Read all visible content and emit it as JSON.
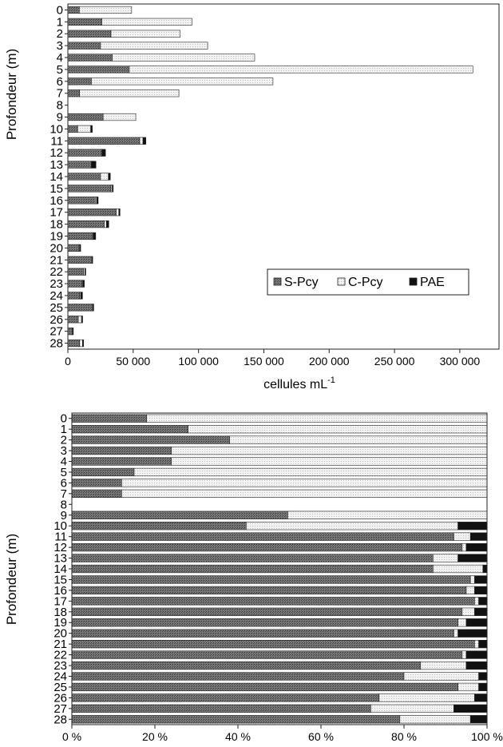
{
  "chart_data": [
    {
      "type": "bar",
      "orientation": "horizontal",
      "stacked": true,
      "ylabel": "Profondeur (m)",
      "xlabel": "cellules mL",
      "xlabel_superscript": "-1",
      "xlim": [
        0,
        330000
      ],
      "xticks": [
        0,
        50000,
        100000,
        150000,
        200000,
        250000,
        300000
      ],
      "xtick_labels": [
        "0",
        "50 000",
        "100 000",
        "150 000",
        "200 000",
        "250 000",
        "300 000"
      ],
      "categories": [
        "0",
        "1",
        "2",
        "3",
        "4",
        "5",
        "6",
        "7",
        "8",
        "9",
        "10",
        "11",
        "12",
        "13",
        "14",
        "15",
        "16",
        "17",
        "18",
        "19",
        "20",
        "21",
        "22",
        "23",
        "24",
        "25",
        "26",
        "27",
        "28"
      ],
      "legend_position": "lower-right",
      "series": [
        {
          "name": "S-Pcy",
          "color": "#666666",
          "values": [
            8800,
            26000,
            33000,
            25000,
            34000,
            47000,
            18000,
            9000,
            0,
            27000,
            7500,
            55000,
            26000,
            18000,
            25000,
            33000,
            21000,
            37000,
            28000,
            19000,
            8500,
            18000,
            12000,
            11000,
            9000,
            19000,
            8000,
            3500,
            9000
          ]
        },
        {
          "name": "C-Pcy",
          "color": "#e6e6e6",
          "values": [
            40000,
            69000,
            53000,
            82000,
            109000,
            263000,
            139000,
            76000,
            0,
            25000,
            10000,
            2500,
            0,
            0,
            6000,
            1000,
            1000,
            2000,
            1500,
            500,
            500,
            500,
            1000,
            500,
            800,
            300,
            2500,
            300,
            2200
          ]
        },
        {
          "name": "PAE",
          "color": "#111111",
          "values": [
            0,
            0,
            0,
            0,
            0,
            0,
            0,
            0,
            0,
            0,
            1200,
            2200,
            2800,
            3500,
            1500,
            700,
            1200,
            900,
            1800,
            1800,
            800,
            500,
            700,
            1100,
            1400,
            500,
            800,
            400,
            800
          ]
        }
      ]
    },
    {
      "type": "bar",
      "orientation": "horizontal",
      "stacked": true,
      "percent": true,
      "ylabel": "Profondeur (m)",
      "xlim": [
        0,
        100
      ],
      "xticks": [
        0,
        20,
        40,
        60,
        80,
        100
      ],
      "xtick_labels": [
        "0 %",
        "20 %",
        "40 %",
        "60 %",
        "80 %",
        "100 %"
      ],
      "categories": [
        "0",
        "1",
        "2",
        "3",
        "4",
        "5",
        "6",
        "7",
        "8",
        "9",
        "10",
        "11",
        "12",
        "13",
        "14",
        "15",
        "16",
        "17",
        "18",
        "19",
        "20",
        "21",
        "22",
        "23",
        "24",
        "25",
        "26",
        "27",
        "28"
      ],
      "series": [
        {
          "name": "S-Pcy",
          "color": "#666666",
          "values": [
            18,
            28,
            38,
            24,
            24,
            15,
            12,
            12,
            0,
            52,
            42,
            92,
            94,
            87,
            87,
            96,
            95,
            97,
            94,
            93,
            92,
            97,
            94,
            84,
            80,
            93,
            74,
            72,
            79
          ]
        },
        {
          "name": "C-Pcy",
          "color": "#e6e6e6",
          "values": [
            82,
            72,
            62,
            76,
            76,
            85,
            88,
            88,
            0,
            48,
            51,
            4,
            1,
            6,
            12,
            1,
            2,
            1,
            3,
            2,
            1,
            1,
            1,
            11,
            18,
            5,
            23,
            20,
            17
          ]
        },
        {
          "name": "PAE",
          "color": "#111111",
          "values": [
            0,
            0,
            0,
            0,
            0,
            0,
            0,
            0,
            0,
            0,
            7,
            4,
            5,
            7,
            1,
            3,
            3,
            2,
            3,
            5,
            7,
            2,
            5,
            5,
            2,
            2,
            3,
            8,
            4
          ]
        }
      ]
    }
  ]
}
